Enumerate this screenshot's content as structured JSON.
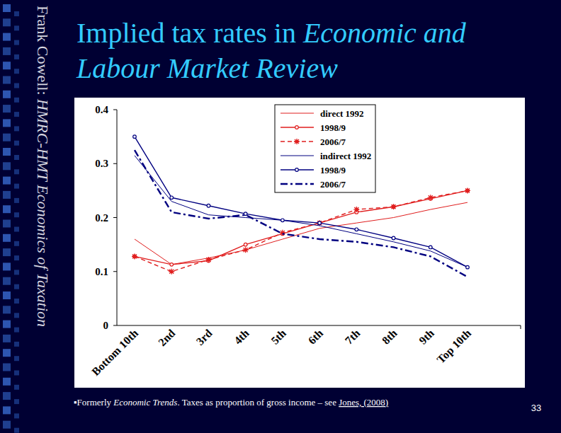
{
  "slide": {
    "side_text": [
      {
        "text": "Frank Cowell: ",
        "style": "normal"
      },
      {
        "text": "HMRC-HMT Economics of Taxation",
        "style": "italic"
      }
    ],
    "title": [
      [
        {
          "text": "Implied tax rates in ",
          "style": "normal"
        },
        {
          "text": "Economic and",
          "style": "italic"
        }
      ],
      [
        {
          "text": "Labour Market Review",
          "style": "italic"
        }
      ]
    ],
    "footnote": [
      {
        "text": "▪Formerly ",
        "style": "normal"
      },
      {
        "text": "Economic Trends",
        "style": "italic"
      },
      {
        "text": ". Taxes as proportion of gross income – see ",
        "style": "normal"
      },
      {
        "text": "Jones, (2008)",
        "style": "underline"
      }
    ],
    "page": 33
  },
  "chart_data": {
    "type": "line",
    "categories": [
      "Bottom 10th",
      "2nd",
      "3rd",
      "4th",
      "5th",
      "6th",
      "7th",
      "8th",
      "9th",
      "Top 10th"
    ],
    "series": [
      {
        "name": "direct 1992",
        "color": "#e01e1e",
        "marker": "none",
        "line_style": "solid",
        "values": [
          0.16,
          0.113,
          0.125,
          0.14,
          0.16,
          0.18,
          0.19,
          0.2,
          0.215,
          0.228
        ]
      },
      {
        "name": "1998/9",
        "color": "#e01e1e",
        "marker": "circle",
        "line_style": "solid",
        "values": [
          0.128,
          0.113,
          0.12,
          0.15,
          0.17,
          0.19,
          0.21,
          0.22,
          0.235,
          0.25
        ]
      },
      {
        "name": "2006/7",
        "color": "#e01e1e",
        "marker": "star",
        "line_style": "dashed",
        "values": [
          0.128,
          0.1,
          0.122,
          0.14,
          0.172,
          0.19,
          0.215,
          0.22,
          0.237,
          0.25
        ]
      },
      {
        "name": "indirect 1992",
        "color": "#000080",
        "marker": "none",
        "line_style": "solid",
        "values": [
          0.315,
          0.23,
          0.205,
          0.2,
          0.195,
          0.185,
          0.17,
          0.155,
          0.138,
          0.108
        ]
      },
      {
        "name": "1998/9",
        "color": "#000080",
        "marker": "circle",
        "line_style": "solid",
        "values": [
          0.35,
          0.237,
          0.222,
          0.207,
          0.195,
          0.19,
          0.178,
          0.162,
          0.145,
          0.108
        ]
      },
      {
        "name": "2006/7",
        "color": "#000080",
        "marker": "none",
        "line_style": "dash-dot",
        "values": [
          0.325,
          0.21,
          0.198,
          0.205,
          0.17,
          0.16,
          0.155,
          0.145,
          0.128,
          0.09
        ]
      }
    ],
    "ylim": [
      0,
      0.4
    ],
    "yticks": [
      0,
      0.1,
      0.2,
      0.3,
      0.4
    ],
    "grid": false,
    "legend": "top"
  }
}
